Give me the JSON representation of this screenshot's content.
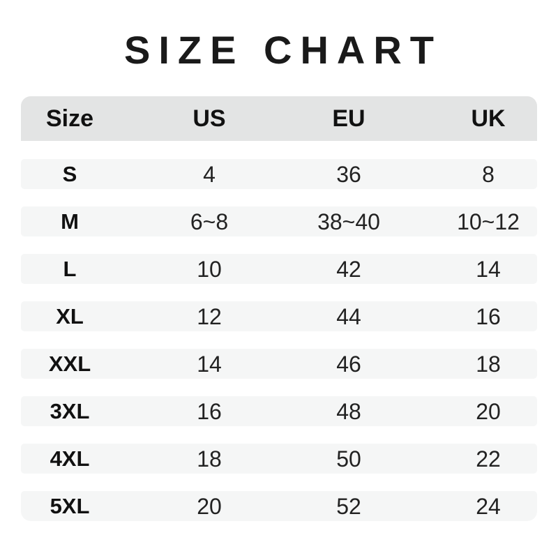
{
  "chart_data": {
    "type": "table",
    "title": "SIZE CHART",
    "columns": [
      "Size",
      "US",
      "EU",
      "UK"
    ],
    "rows": [
      [
        "S",
        "4",
        "36",
        "8"
      ],
      [
        "M",
        "6~8",
        "38~40",
        "10~12"
      ],
      [
        "L",
        "10",
        "42",
        "14"
      ],
      [
        "XL",
        "12",
        "44",
        "16"
      ],
      [
        "XXL",
        "14",
        "46",
        "18"
      ],
      [
        "3XL",
        "16",
        "48",
        "20"
      ],
      [
        "4XL",
        "18",
        "50",
        "22"
      ],
      [
        "5XL",
        "20",
        "52",
        "24"
      ]
    ],
    "layout": {
      "legend": "none",
      "grid": "off",
      "row_striping": "every-row-with-white-gaps"
    }
  },
  "colors": {
    "background": "#ffffff",
    "header_bg": "#e3e4e4",
    "row_bg": "#f5f6f6",
    "title_text": "#1a1a1a",
    "label_text": "#111111",
    "value_text": "#222222"
  }
}
